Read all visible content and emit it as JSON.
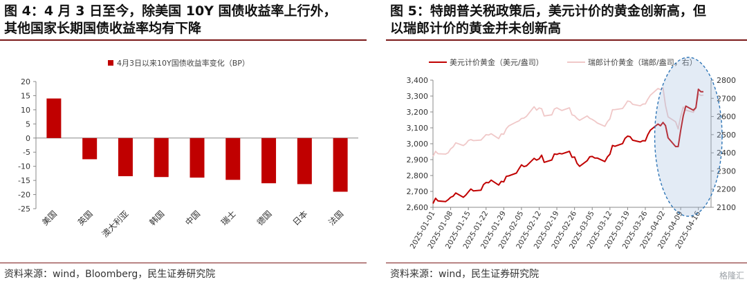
{
  "left": {
    "title_line1": "图 4：4 月 3 日至今，除美国 10Y 国债收益率上行外，",
    "title_line2": "其他国家长期国债收益率均有下降",
    "source": "资料来源：wind，Bloomberg，民生证券研究院"
  },
  "right": {
    "title_line1": "图 5：特朗普关税政策后，美元计价的黄金创新高，但",
    "title_line2": "以瑞郎计价的黄金并未创新高",
    "source": "资料来源：wind，民生证券研究院"
  },
  "watermark": "格隆汇",
  "colors": {
    "accent": "#c00000",
    "secondary": "#f0c8c8",
    "rule": "#7a1818",
    "ellipse": "#2e75b6"
  },
  "chart_data": [
    {
      "type": "bar",
      "title": "",
      "legend": "4月3日以来10Y国债收益率变化（BP）",
      "categories": [
        "美国",
        "英国",
        "澳大利亚",
        "韩国",
        "中国",
        "瑞士",
        "德国",
        "日本",
        "法国"
      ],
      "values": [
        14,
        -7.5,
        -13.5,
        -13.8,
        -14,
        -14.8,
        -16,
        -16.3,
        -19
      ],
      "ylim": [
        -25,
        20
      ],
      "yticks": [
        "20",
        "15",
        "10",
        "5",
        "0",
        "-5",
        "-10",
        "-15",
        "-20",
        "-25"
      ],
      "grid": false,
      "legend_position": "top"
    },
    {
      "type": "line",
      "title": "",
      "x_start": "2025-01-01",
      "x_end": "2025-04-21",
      "xtick_labels": [
        "2025-01-01",
        "2025-01-08",
        "2025-01-15",
        "2025-01-22",
        "2025-01-29",
        "2025-02-05",
        "2025-02-12",
        "2025-02-19",
        "2025-02-26",
        "2025-03-05",
        "2025-03-12",
        "2025-03-19",
        "2025-03-26",
        "2025-04-02",
        "2025-04-09",
        "2025-04-16"
      ],
      "left_axis": {
        "ylim": [
          2600,
          3400
        ],
        "ticks": [
          "3,400",
          "3,300",
          "3,200",
          "3,100",
          "3,000",
          "2,900",
          "2,800",
          "2,700",
          "2,600"
        ]
      },
      "right_axis": {
        "ylim": [
          2100,
          2800
        ],
        "ticks": [
          "2800",
          "2700",
          "2600",
          "2500",
          "2400",
          "2300",
          "2200",
          "2100"
        ]
      },
      "series": [
        {
          "name": "美元计价黄金（美元/盎司）",
          "axis": "left",
          "color": "#c00000",
          "points": [
            [
              "2025-01-01",
              2624
            ],
            [
              "2025-01-02",
              2657
            ],
            [
              "2025-01-03",
              2640
            ],
            [
              "2025-01-06",
              2636
            ],
            [
              "2025-01-07",
              2648
            ],
            [
              "2025-01-08",
              2663
            ],
            [
              "2025-01-09",
              2670
            ],
            [
              "2025-01-10",
              2690
            ],
            [
              "2025-01-13",
              2663
            ],
            [
              "2025-01-14",
              2677
            ],
            [
              "2025-01-15",
              2697
            ],
            [
              "2025-01-16",
              2715
            ],
            [
              "2025-01-17",
              2703
            ],
            [
              "2025-01-20",
              2708
            ],
            [
              "2025-01-21",
              2743
            ],
            [
              "2025-01-22",
              2756
            ],
            [
              "2025-01-23",
              2755
            ],
            [
              "2025-01-24",
              2771
            ],
            [
              "2025-01-27",
              2740
            ],
            [
              "2025-01-28",
              2763
            ],
            [
              "2025-01-29",
              2760
            ],
            [
              "2025-01-30",
              2795
            ],
            [
              "2025-01-31",
              2798
            ],
            [
              "2025-02-03",
              2815
            ],
            [
              "2025-02-04",
              2842
            ],
            [
              "2025-02-05",
              2867
            ],
            [
              "2025-02-06",
              2856
            ],
            [
              "2025-02-07",
              2861
            ],
            [
              "2025-02-10",
              2908
            ],
            [
              "2025-02-11",
              2897
            ],
            [
              "2025-02-12",
              2905
            ],
            [
              "2025-02-13",
              2928
            ],
            [
              "2025-02-14",
              2883
            ],
            [
              "2025-02-17",
              2898
            ],
            [
              "2025-02-18",
              2935
            ],
            [
              "2025-02-19",
              2933
            ],
            [
              "2025-02-20",
              2939
            ],
            [
              "2025-02-21",
              2936
            ],
            [
              "2025-02-24",
              2952
            ],
            [
              "2025-02-25",
              2915
            ],
            [
              "2025-02-26",
              2916
            ],
            [
              "2025-02-27",
              2876
            ],
            [
              "2025-02-28",
              2858
            ],
            [
              "2025-03-03",
              2893
            ],
            [
              "2025-03-04",
              2918
            ],
            [
              "2025-03-05",
              2920
            ],
            [
              "2025-03-06",
              2910
            ],
            [
              "2025-03-07",
              2910
            ],
            [
              "2025-03-10",
              2888
            ],
            [
              "2025-03-11",
              2917
            ],
            [
              "2025-03-12",
              2934
            ],
            [
              "2025-03-13",
              2989
            ],
            [
              "2025-03-14",
              2984
            ],
            [
              "2025-03-17",
              3001
            ],
            [
              "2025-03-18",
              3034
            ],
            [
              "2025-03-19",
              3048
            ],
            [
              "2025-03-20",
              3044
            ],
            [
              "2025-03-21",
              3022
            ],
            [
              "2025-03-24",
              3011
            ],
            [
              "2025-03-25",
              3019
            ],
            [
              "2025-03-26",
              3018
            ],
            [
              "2025-03-27",
              3057
            ],
            [
              "2025-03-28",
              3085
            ],
            [
              "2025-03-31",
              3124
            ],
            [
              "2025-04-01",
              3113
            ],
            [
              "2025-04-02",
              3134
            ],
            [
              "2025-04-03",
              3114
            ],
            [
              "2025-04-04",
              3037
            ],
            [
              "2025-04-07",
              2982
            ],
            [
              "2025-04-08",
              2982
            ],
            [
              "2025-04-09",
              3083
            ],
            [
              "2025-04-10",
              3175
            ],
            [
              "2025-04-11",
              3237
            ],
            [
              "2025-04-14",
              3211
            ],
            [
              "2025-04-15",
              3227
            ],
            [
              "2025-04-16",
              3343
            ],
            [
              "2025-04-17",
              3327
            ],
            [
              "2025-04-18",
              3327
            ]
          ]
        },
        {
          "name": "瑞郎计价黄金（瑞郎/盎司，右）",
          "axis": "right",
          "color": "#f0c8c8",
          "points": [
            [
              "2025-01-01",
              2380
            ],
            [
              "2025-01-02",
              2408
            ],
            [
              "2025-01-03",
              2395
            ],
            [
              "2025-01-06",
              2393
            ],
            [
              "2025-01-07",
              2400
            ],
            [
              "2025-01-08",
              2422
            ],
            [
              "2025-01-09",
              2433
            ],
            [
              "2025-01-10",
              2455
            ],
            [
              "2025-01-13",
              2440
            ],
            [
              "2025-01-14",
              2450
            ],
            [
              "2025-01-15",
              2468
            ],
            [
              "2025-01-16",
              2473
            ],
            [
              "2025-01-17",
              2467
            ],
            [
              "2025-01-20",
              2470
            ],
            [
              "2025-01-21",
              2485
            ],
            [
              "2025-01-22",
              2500
            ],
            [
              "2025-01-23",
              2498
            ],
            [
              "2025-01-24",
              2505
            ],
            [
              "2025-01-27",
              2478
            ],
            [
              "2025-01-28",
              2504
            ],
            [
              "2025-01-29",
              2502
            ],
            [
              "2025-01-30",
              2533
            ],
            [
              "2025-01-31",
              2548
            ],
            [
              "2025-02-03",
              2570
            ],
            [
              "2025-02-04",
              2576
            ],
            [
              "2025-02-05",
              2589
            ],
            [
              "2025-02-06",
              2591
            ],
            [
              "2025-02-07",
              2601
            ],
            [
              "2025-02-10",
              2654
            ],
            [
              "2025-02-11",
              2635
            ],
            [
              "2025-02-12",
              2647
            ],
            [
              "2025-02-13",
              2643
            ],
            [
              "2025-02-14",
              2603
            ],
            [
              "2025-02-17",
              2609
            ],
            [
              "2025-02-18",
              2641
            ],
            [
              "2025-02-19",
              2648
            ],
            [
              "2025-02-20",
              2640
            ],
            [
              "2025-02-21",
              2633
            ],
            [
              "2025-02-24",
              2648
            ],
            [
              "2025-02-25",
              2609
            ],
            [
              "2025-02-26",
              2604
            ],
            [
              "2025-02-27",
              2589
            ],
            [
              "2025-02-28",
              2579
            ],
            [
              "2025-03-03",
              2603
            ],
            [
              "2025-03-04",
              2590
            ],
            [
              "2025-03-05",
              2584
            ],
            [
              "2025-03-06",
              2575
            ],
            [
              "2025-03-07",
              2564
            ],
            [
              "2025-03-10",
              2546
            ],
            [
              "2025-03-11",
              2571
            ],
            [
              "2025-03-12",
              2587
            ],
            [
              "2025-03-13",
              2637
            ],
            [
              "2025-03-14",
              2638
            ],
            [
              "2025-03-17",
              2644
            ],
            [
              "2025-03-18",
              2663
            ],
            [
              "2025-03-19",
              2685
            ],
            [
              "2025-03-20",
              2682
            ],
            [
              "2025-03-21",
              2667
            ],
            [
              "2025-03-24",
              2659
            ],
            [
              "2025-03-25",
              2668
            ],
            [
              "2025-03-26",
              2669
            ],
            [
              "2025-03-27",
              2695
            ],
            [
              "2025-03-28",
              2717
            ],
            [
              "2025-03-31",
              2754
            ],
            [
              "2025-04-01",
              2748
            ],
            [
              "2025-04-02",
              2757
            ],
            [
              "2025-04-03",
              2660
            ],
            [
              "2025-04-04",
              2598
            ],
            [
              "2025-04-07",
              2571
            ],
            [
              "2025-04-08",
              2531
            ],
            [
              "2025-04-09",
              2600
            ],
            [
              "2025-04-10",
              2652
            ],
            [
              "2025-04-11",
              2635
            ],
            [
              "2025-04-14",
              2623
            ],
            [
              "2025-04-15",
              2648
            ],
            [
              "2025-04-16",
              2725
            ],
            [
              "2025-04-17",
              2716
            ],
            [
              "2025-04-18",
              2718
            ]
          ]
        }
      ],
      "annotation": {
        "shape": "dashed-ellipse",
        "period": [
          "2025-04-02",
          "2025-04-21"
        ]
      },
      "grid": false,
      "legend_position": "top"
    }
  ]
}
